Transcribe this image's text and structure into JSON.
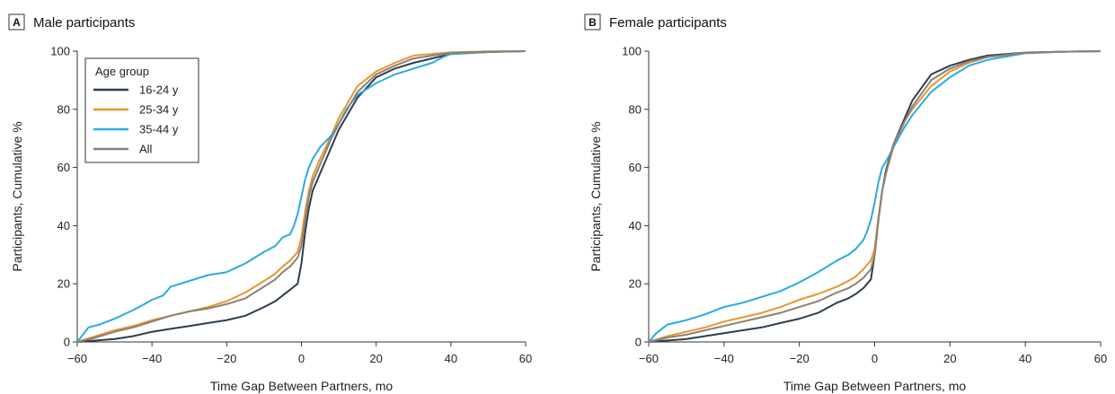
{
  "colors": {
    "16-24 y": "#2c3e50",
    "25-34 y": "#e8952f",
    "35-44 y": "#29abe2",
    "All": "#8c8075"
  },
  "chart_data": [
    {
      "type": "line",
      "panel_letter": "A",
      "title": "Male participants",
      "xlabel": "Time Gap Between Partners, mo",
      "ylabel": "Participants, Cumulative %",
      "xlim": [
        -60,
        60
      ],
      "ylim": [
        0,
        100
      ],
      "xticks": [
        -60,
        -40,
        -20,
        0,
        20,
        40,
        60
      ],
      "yticks": [
        0,
        20,
        40,
        60,
        80,
        100
      ],
      "grid": false,
      "legend": {
        "title": "Age group",
        "position": "top-left"
      },
      "series": [
        {
          "name": "16-24 y",
          "x": [
            -60,
            -55,
            -50,
            -45,
            -40,
            -35,
            -30,
            -25,
            -20,
            -15,
            -10,
            -7,
            -5,
            -3,
            -2,
            -1,
            0,
            1,
            2,
            3,
            5,
            8,
            10,
            15,
            20,
            25,
            30,
            40,
            50,
            60
          ],
          "y": [
            0,
            0.5,
            1,
            2,
            3.5,
            4.5,
            5.5,
            6.5,
            7.5,
            9,
            12,
            14,
            16,
            18,
            19,
            20,
            27,
            38,
            46,
            52,
            58,
            67,
            73,
            84,
            91,
            94,
            96,
            99,
            99.7,
            100
          ]
        },
        {
          "name": "25-34 y",
          "x": [
            -60,
            -55,
            -50,
            -45,
            -40,
            -35,
            -30,
            -25,
            -20,
            -15,
            -10,
            -7,
            -5,
            -3,
            -2,
            -1,
            0,
            1,
            2,
            3,
            5,
            8,
            10,
            15,
            20,
            25,
            30,
            40,
            50,
            60
          ],
          "y": [
            0,
            2,
            4,
            5.5,
            7.5,
            9,
            10.5,
            12,
            14,
            17,
            21,
            23.5,
            26,
            28,
            29.5,
            31,
            36,
            45,
            52,
            57,
            63,
            71,
            77,
            88,
            93,
            96,
            98.5,
            99.6,
            99.9,
            100
          ]
        },
        {
          "name": "35-44 y",
          "x": [
            -60,
            -57,
            -54,
            -50,
            -45,
            -42,
            -40,
            -37,
            -35,
            -30,
            -25,
            -20,
            -15,
            -10,
            -7,
            -5,
            -3,
            -2,
            -1,
            0,
            1,
            2,
            3,
            5,
            8,
            10,
            12,
            15,
            20,
            25,
            30,
            35,
            38,
            40,
            50,
            60
          ],
          "y": [
            0,
            5,
            6,
            8,
            11,
            13,
            14.5,
            16,
            19,
            21,
            23,
            24,
            27,
            31,
            33,
            36,
            37,
            40,
            44,
            50,
            56,
            60,
            63,
            67,
            71,
            75,
            80,
            85,
            89,
            92,
            94,
            96,
            98,
            99,
            99.7,
            100
          ]
        },
        {
          "name": "All",
          "x": [
            -60,
            -55,
            -50,
            -45,
            -40,
            -35,
            -30,
            -25,
            -20,
            -15,
            -10,
            -7,
            -5,
            -3,
            -2,
            -1,
            0,
            1,
            2,
            3,
            5,
            8,
            10,
            15,
            20,
            25,
            30,
            40,
            50,
            60
          ],
          "y": [
            0,
            1.5,
            3.5,
            5,
            7,
            9,
            10.5,
            11.5,
            13,
            15,
            19,
            21.5,
            24,
            26,
            27.5,
            29,
            33,
            42,
            50,
            55,
            61,
            70,
            75,
            86,
            92,
            95,
            97.5,
            99.4,
            99.8,
            100
          ]
        }
      ]
    },
    {
      "type": "line",
      "panel_letter": "B",
      "title": "Female participants",
      "xlabel": "Time Gap Between Partners, mo",
      "ylabel": "Participants, Cumulative %",
      "xlim": [
        -60,
        60
      ],
      "ylim": [
        0,
        100
      ],
      "xticks": [
        -60,
        -40,
        -20,
        0,
        20,
        40,
        60
      ],
      "yticks": [
        0,
        20,
        40,
        60,
        80,
        100
      ],
      "grid": false,
      "series": [
        {
          "name": "16-24 y",
          "x": [
            -60,
            -55,
            -50,
            -45,
            -40,
            -35,
            -30,
            -25,
            -20,
            -15,
            -10,
            -7,
            -5,
            -3,
            -2,
            -1,
            0,
            1,
            2,
            3,
            5,
            8,
            10,
            15,
            20,
            25,
            30,
            40,
            50,
            60
          ],
          "y": [
            0,
            0.5,
            1,
            2,
            3,
            4,
            5,
            6.5,
            8,
            10,
            13.5,
            15,
            16.5,
            18.5,
            20,
            21.5,
            30,
            42,
            52,
            59,
            68,
            77,
            83,
            92,
            95,
            97,
            98.5,
            99.5,
            99.8,
            100
          ]
        },
        {
          "name": "25-34 y",
          "x": [
            -60,
            -55,
            -50,
            -45,
            -40,
            -35,
            -30,
            -25,
            -20,
            -15,
            -10,
            -7,
            -5,
            -3,
            -2,
            -1,
            0,
            1,
            2,
            3,
            5,
            8,
            10,
            15,
            20,
            25,
            30,
            40,
            50,
            60
          ],
          "y": [
            0,
            2,
            3.5,
            5,
            7,
            8.5,
            10,
            12,
            14.5,
            16.5,
            19,
            21,
            22.5,
            25,
            26.5,
            28,
            32,
            43,
            52,
            58,
            67,
            76,
            80,
            88,
            93,
            96,
            98,
            99.4,
            99.8,
            100
          ]
        },
        {
          "name": "35-44 y",
          "x": [
            -60,
            -58,
            -55,
            -50,
            -45,
            -40,
            -35,
            -30,
            -25,
            -20,
            -15,
            -10,
            -7,
            -5,
            -3,
            -2,
            -1,
            0,
            1,
            2,
            3,
            5,
            8,
            10,
            15,
            20,
            25,
            30,
            40,
            50,
            60
          ],
          "y": [
            0,
            3,
            6,
            7.5,
            9.5,
            12,
            13.5,
            15.5,
            17.5,
            20.5,
            24,
            28,
            30,
            32,
            35,
            38,
            42,
            48,
            55,
            60,
            62,
            67,
            74,
            78,
            86,
            91,
            95,
            97,
            99.3,
            99.8,
            100
          ]
        },
        {
          "name": "All",
          "x": [
            -60,
            -55,
            -50,
            -45,
            -40,
            -35,
            -30,
            -25,
            -20,
            -15,
            -10,
            -7,
            -5,
            -3,
            -2,
            -1,
            0,
            1,
            2,
            3,
            5,
            8,
            10,
            15,
            20,
            25,
            30,
            40,
            50,
            60
          ],
          "y": [
            0,
            1.5,
            2.5,
            4,
            5.5,
            7,
            8.5,
            10,
            12,
            14,
            17,
            18.5,
            20,
            22,
            23.5,
            25,
            30,
            42,
            52,
            58,
            68,
            76,
            81,
            90,
            94,
            96.5,
            98,
            99.4,
            99.8,
            100
          ]
        }
      ]
    }
  ]
}
